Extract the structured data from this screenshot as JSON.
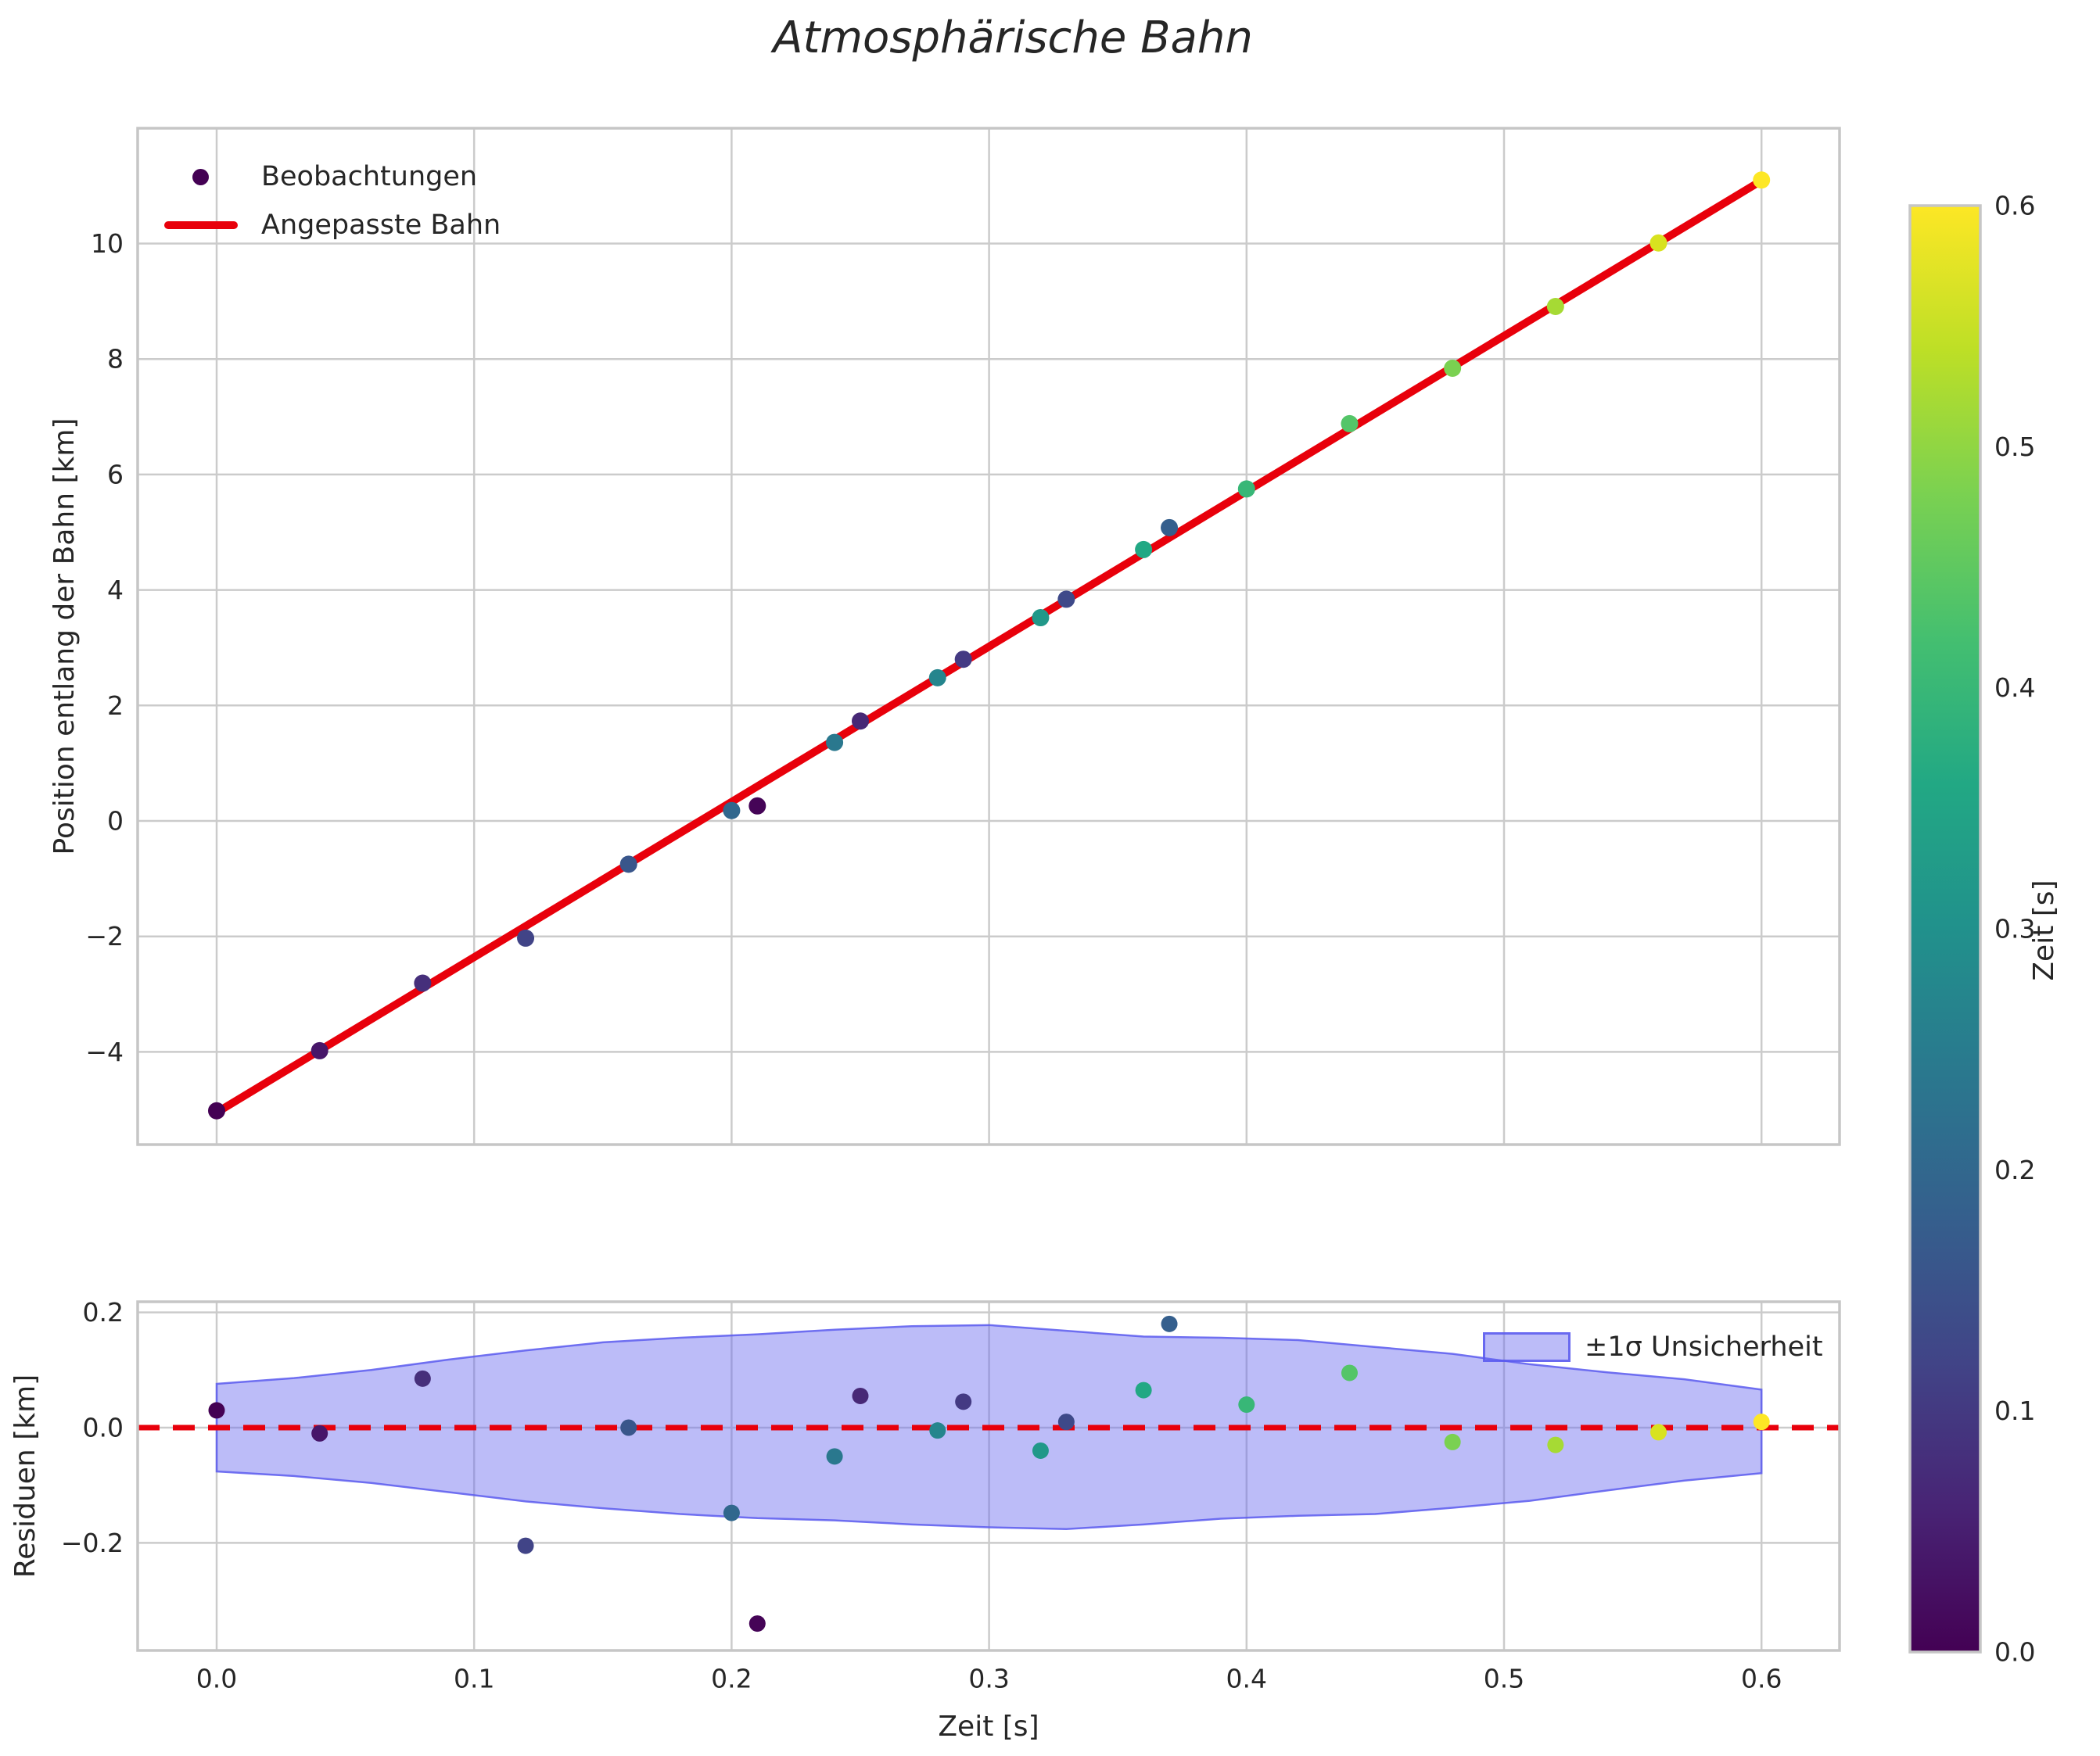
{
  "title": "Atmosphärische Bahn",
  "main_plot": {
    "ylabel": "Position entlang der Bahn [km]",
    "legend": [
      {
        "label": "Beobachtungen",
        "marker": "dot",
        "color": "#440154"
      },
      {
        "label": "Angepasste Bahn",
        "marker": "line",
        "color": "#e8000b"
      }
    ]
  },
  "residual_plot": {
    "ylabel": "Residuen [km]",
    "xlabel": "Zeit [s]",
    "band_legend_label": "±1σ Unsicherheit"
  },
  "colorbar": {
    "label": "Zeit [s]"
  },
  "colors": {
    "fit_line": "#e8000b",
    "zero_line": "#e8000b",
    "band_fill": "#6b6bef",
    "band_edge": "#5a5aee",
    "grid": "#cbcbcb",
    "frame": "#c6c6c6",
    "text": "#262626"
  },
  "chart_data": {
    "type": "scatter",
    "title": "Atmosphärische Bahn",
    "xlabel": "Zeit [s]",
    "ylabel_main": "Position entlang der Bahn [km]",
    "ylabel_residual": "Residuen [km]",
    "grid": true,
    "observations": [
      {
        "t": 0.0,
        "position": -5.02,
        "residual": 0.03,
        "color": "#440154"
      },
      {
        "t": 0.04,
        "position": -3.98,
        "residual": -0.01,
        "color": "#471669"
      },
      {
        "t": 0.08,
        "position": -2.81,
        "residual": 0.085,
        "color": "#462F7B"
      },
      {
        "t": 0.12,
        "position": -2.03,
        "residual": -0.205,
        "color": "#414487"
      },
      {
        "t": 0.16,
        "position": -0.75,
        "residual": 0.0,
        "color": "#39568B"
      },
      {
        "t": 0.2,
        "position": 0.18,
        "residual": -0.148,
        "color": "#31678D"
      },
      {
        "t": 0.21,
        "position": 0.26,
        "residual": -0.34,
        "color": "#450457"
      },
      {
        "t": 0.24,
        "position": 1.36,
        "residual": -0.05,
        "color": "#2A788E"
      },
      {
        "t": 0.25,
        "position": 1.73,
        "residual": 0.055,
        "color": "#472876"
      },
      {
        "t": 0.28,
        "position": 2.48,
        "residual": -0.005,
        "color": "#25858D"
      },
      {
        "t": 0.29,
        "position": 2.8,
        "residual": 0.045,
        "color": "#443A83"
      },
      {
        "t": 0.32,
        "position": 3.52,
        "residual": -0.04,
        "color": "#219889"
      },
      {
        "t": 0.33,
        "position": 3.84,
        "residual": 0.01,
        "color": "#3E4989"
      },
      {
        "t": 0.36,
        "position": 4.7,
        "residual": 0.065,
        "color": "#22A884"
      },
      {
        "t": 0.37,
        "position": 5.08,
        "residual": 0.18,
        "color": "#355F8D"
      },
      {
        "t": 0.4,
        "position": 5.75,
        "residual": 0.04,
        "color": "#38B777"
      },
      {
        "t": 0.44,
        "position": 6.88,
        "residual": 0.095,
        "color": "#54C568"
      },
      {
        "t": 0.48,
        "position": 7.84,
        "residual": -0.025,
        "color": "#7AD151"
      },
      {
        "t": 0.52,
        "position": 8.91,
        "residual": -0.03,
        "color": "#A6DA34"
      },
      {
        "t": 0.56,
        "position": 10.01,
        "residual": -0.008,
        "color": "#D8E21F"
      },
      {
        "t": 0.6,
        "position": 11.1,
        "residual": 0.01,
        "color": "#FDE725"
      }
    ],
    "fit_line": {
      "label": "Angepasste Bahn",
      "slope": 26.9,
      "intercept": -5.05,
      "t_start": 0.0,
      "t_end": 0.6
    },
    "uncertainty_band": {
      "label": "±1σ Unsicherheit",
      "t": [
        0.0,
        0.03,
        0.06,
        0.09,
        0.12,
        0.15,
        0.18,
        0.21,
        0.24,
        0.27,
        0.3,
        0.33,
        0.36,
        0.39,
        0.42,
        0.45,
        0.48,
        0.51,
        0.54,
        0.57,
        0.6
      ],
      "upper": [
        0.076,
        0.086,
        0.1,
        0.118,
        0.134,
        0.148,
        0.156,
        0.162,
        0.17,
        0.176,
        0.178,
        0.168,
        0.158,
        0.156,
        0.152,
        0.14,
        0.128,
        0.11,
        0.096,
        0.084,
        0.066
      ],
      "lower": [
        -0.076,
        -0.084,
        -0.096,
        -0.112,
        -0.128,
        -0.14,
        -0.15,
        -0.157,
        -0.161,
        -0.168,
        -0.173,
        -0.176,
        -0.168,
        -0.158,
        -0.153,
        -0.15,
        -0.139,
        -0.127,
        -0.109,
        -0.092,
        -0.079
      ]
    },
    "axes": {
      "main": {
        "xlim": [
          -0.0307,
          0.6304
        ],
        "ylim": [
          -5.61,
          12.0
        ],
        "ytick_values": [
          10,
          8,
          6,
          4,
          2,
          0,
          -2,
          -4
        ],
        "ytick_labels": [
          "10",
          "8",
          "6",
          "4",
          "2",
          "0",
          "−2",
          "−4"
        ]
      },
      "residual": {
        "ylim": [
          -0.387,
          0.218
        ],
        "ytick_values": [
          0.2,
          0.0,
          -0.2
        ],
        "ytick_labels": [
          "0.2",
          "0.0",
          "−0.2"
        ],
        "xtick_values": [
          0.0,
          0.1,
          0.2,
          0.3,
          0.4,
          0.5,
          0.6
        ],
        "xtick_labels": [
          "0.0",
          "0.1",
          "0.2",
          "0.3",
          "0.4",
          "0.5",
          "0.6"
        ]
      },
      "colorbar": {
        "range": [
          0.0,
          0.6
        ],
        "tick_values": [
          0.0,
          0.1,
          0.2,
          0.3,
          0.4,
          0.5,
          0.6
        ],
        "tick_labels": [
          "0.0",
          "0.1",
          "0.2",
          "0.3",
          "0.4",
          "0.5",
          "0.6"
        ],
        "viridis_stops": [
          "#440154",
          "#482475",
          "#414487",
          "#355f8d",
          "#2a788e",
          "#21918c",
          "#22a884",
          "#44bf70",
          "#7ad151",
          "#bddf26",
          "#fde725"
        ]
      }
    }
  }
}
